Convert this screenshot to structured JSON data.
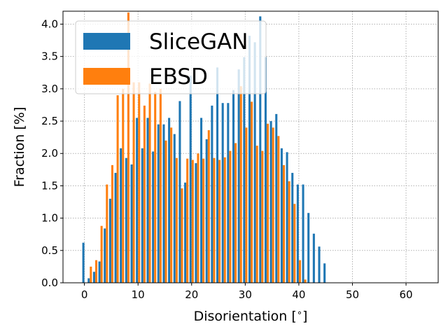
{
  "chart_data": {
    "type": "bar",
    "xlabel": "Disorientation [$^\\circ$]",
    "xlabel_text": "Disorientation [",
    "xlabel_degree": "∘",
    "xlabel_close": "]",
    "ylabel": "Fraction [%]",
    "xlim": [
      -4,
      66
    ],
    "ylim": [
      0,
      4.2
    ],
    "x_ticks": [
      0,
      10,
      20,
      30,
      40,
      50,
      60
    ],
    "x_tick_labels": [
      "0",
      "10",
      "20",
      "30",
      "40",
      "50",
      "60"
    ],
    "y_ticks": [
      0.0,
      0.5,
      1.0,
      1.5,
      2.0,
      2.5,
      3.0,
      3.5,
      4.0
    ],
    "y_tick_labels": [
      "0.0",
      "0.5",
      "1.0",
      "1.5",
      "2.0",
      "2.5",
      "3.0",
      "3.5",
      "4.0"
    ],
    "grid": true,
    "legend_position": "top-left",
    "x": [
      0,
      1,
      2,
      3,
      4,
      5,
      6,
      7,
      8,
      9,
      10,
      11,
      12,
      13,
      14,
      15,
      16,
      17,
      18,
      19,
      20,
      21,
      22,
      23,
      24,
      25,
      26,
      27,
      28,
      29,
      30,
      31,
      32,
      33,
      34,
      35,
      36,
      37,
      38,
      39,
      40,
      41,
      42,
      43,
      44,
      45,
      46,
      47,
      48,
      49,
      50,
      51,
      52,
      53,
      54,
      55,
      56,
      57,
      58,
      59,
      60,
      61,
      62
    ],
    "series": [
      {
        "name": "SliceGAN",
        "color": "#1f77b4",
        "values": [
          0.62,
          0.07,
          0.17,
          0.33,
          0.84,
          1.3,
          1.7,
          2.08,
          1.93,
          1.83,
          2.55,
          2.08,
          2.55,
          2.03,
          2.45,
          2.45,
          2.55,
          2.3,
          2.81,
          1.55,
          3.2,
          1.85,
          2.55,
          2.22,
          2.74,
          3.33,
          2.78,
          2.78,
          2.98,
          3.3,
          3.49,
          3.82,
          3.72,
          4.12,
          3.49,
          2.5,
          2.61,
          2.08,
          2.02,
          1.7,
          1.52,
          1.52,
          1.08,
          0.76,
          0.56,
          0.3,
          0,
          0,
          0,
          0,
          0,
          0,
          0,
          0,
          0,
          0,
          0,
          0,
          0,
          0,
          0,
          0,
          0
        ]
      },
      {
        "name": "EBSD",
        "color": "#ff7f0e",
        "values": [
          0,
          0.25,
          0.35,
          0.88,
          1.52,
          1.82,
          2.9,
          3.0,
          4.18,
          3.1,
          3.1,
          2.74,
          3.08,
          2.95,
          3.0,
          2.2,
          2.4,
          1.93,
          1.46,
          1.92,
          1.9,
          2.0,
          1.92,
          2.36,
          1.93,
          1.9,
          1.94,
          2.04,
          2.16,
          3.04,
          2.4,
          2.8,
          2.12,
          2.04,
          2.46,
          2.4,
          2.27,
          1.82,
          1.57,
          1.22,
          0.35,
          0.05,
          0,
          0,
          0,
          0,
          0,
          0,
          0,
          0,
          0,
          0,
          0,
          0,
          0,
          0,
          0,
          0,
          0,
          0,
          0,
          0,
          0
        ]
      }
    ]
  }
}
